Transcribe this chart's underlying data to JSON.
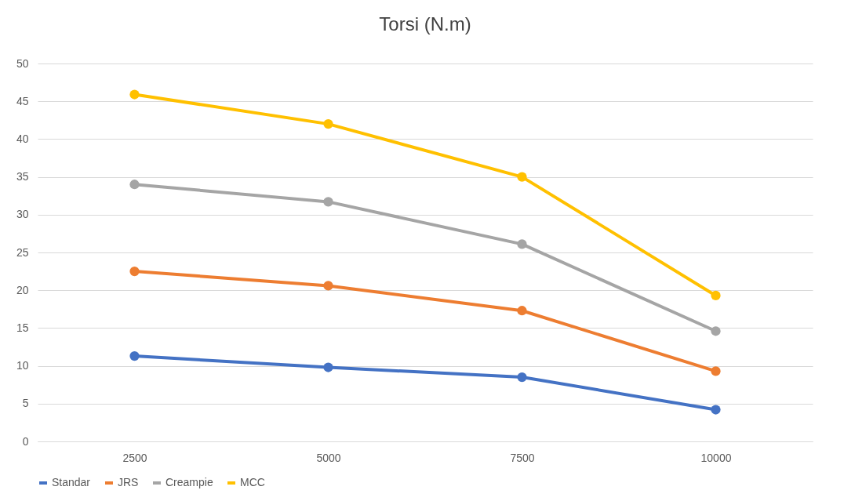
{
  "chart_data": {
    "type": "line",
    "title": "Torsi (N.m)",
    "categories": [
      "2500",
      "5000",
      "7500",
      "10000"
    ],
    "series": [
      {
        "name": "Standar",
        "color": "#4472c4",
        "values": [
          11.3,
          9.8,
          8.5,
          4.2
        ]
      },
      {
        "name": "JRS",
        "color": "#ed7d31",
        "values": [
          22.5,
          20.6,
          17.3,
          9.3
        ]
      },
      {
        "name": "Creampie",
        "color": "#a5a5a5",
        "values": [
          34.0,
          31.7,
          26.1,
          14.6
        ]
      },
      {
        "name": "MCC",
        "color": "#ffc000",
        "values": [
          45.9,
          42.0,
          35.0,
          19.3
        ]
      }
    ],
    "ylim": [
      0,
      50
    ],
    "yticks": [
      0,
      5,
      10,
      15,
      20,
      25,
      30,
      35,
      40,
      45,
      50
    ],
    "grid": "y",
    "legend": "bottom",
    "marker": "circle",
    "line_style": "solid"
  }
}
